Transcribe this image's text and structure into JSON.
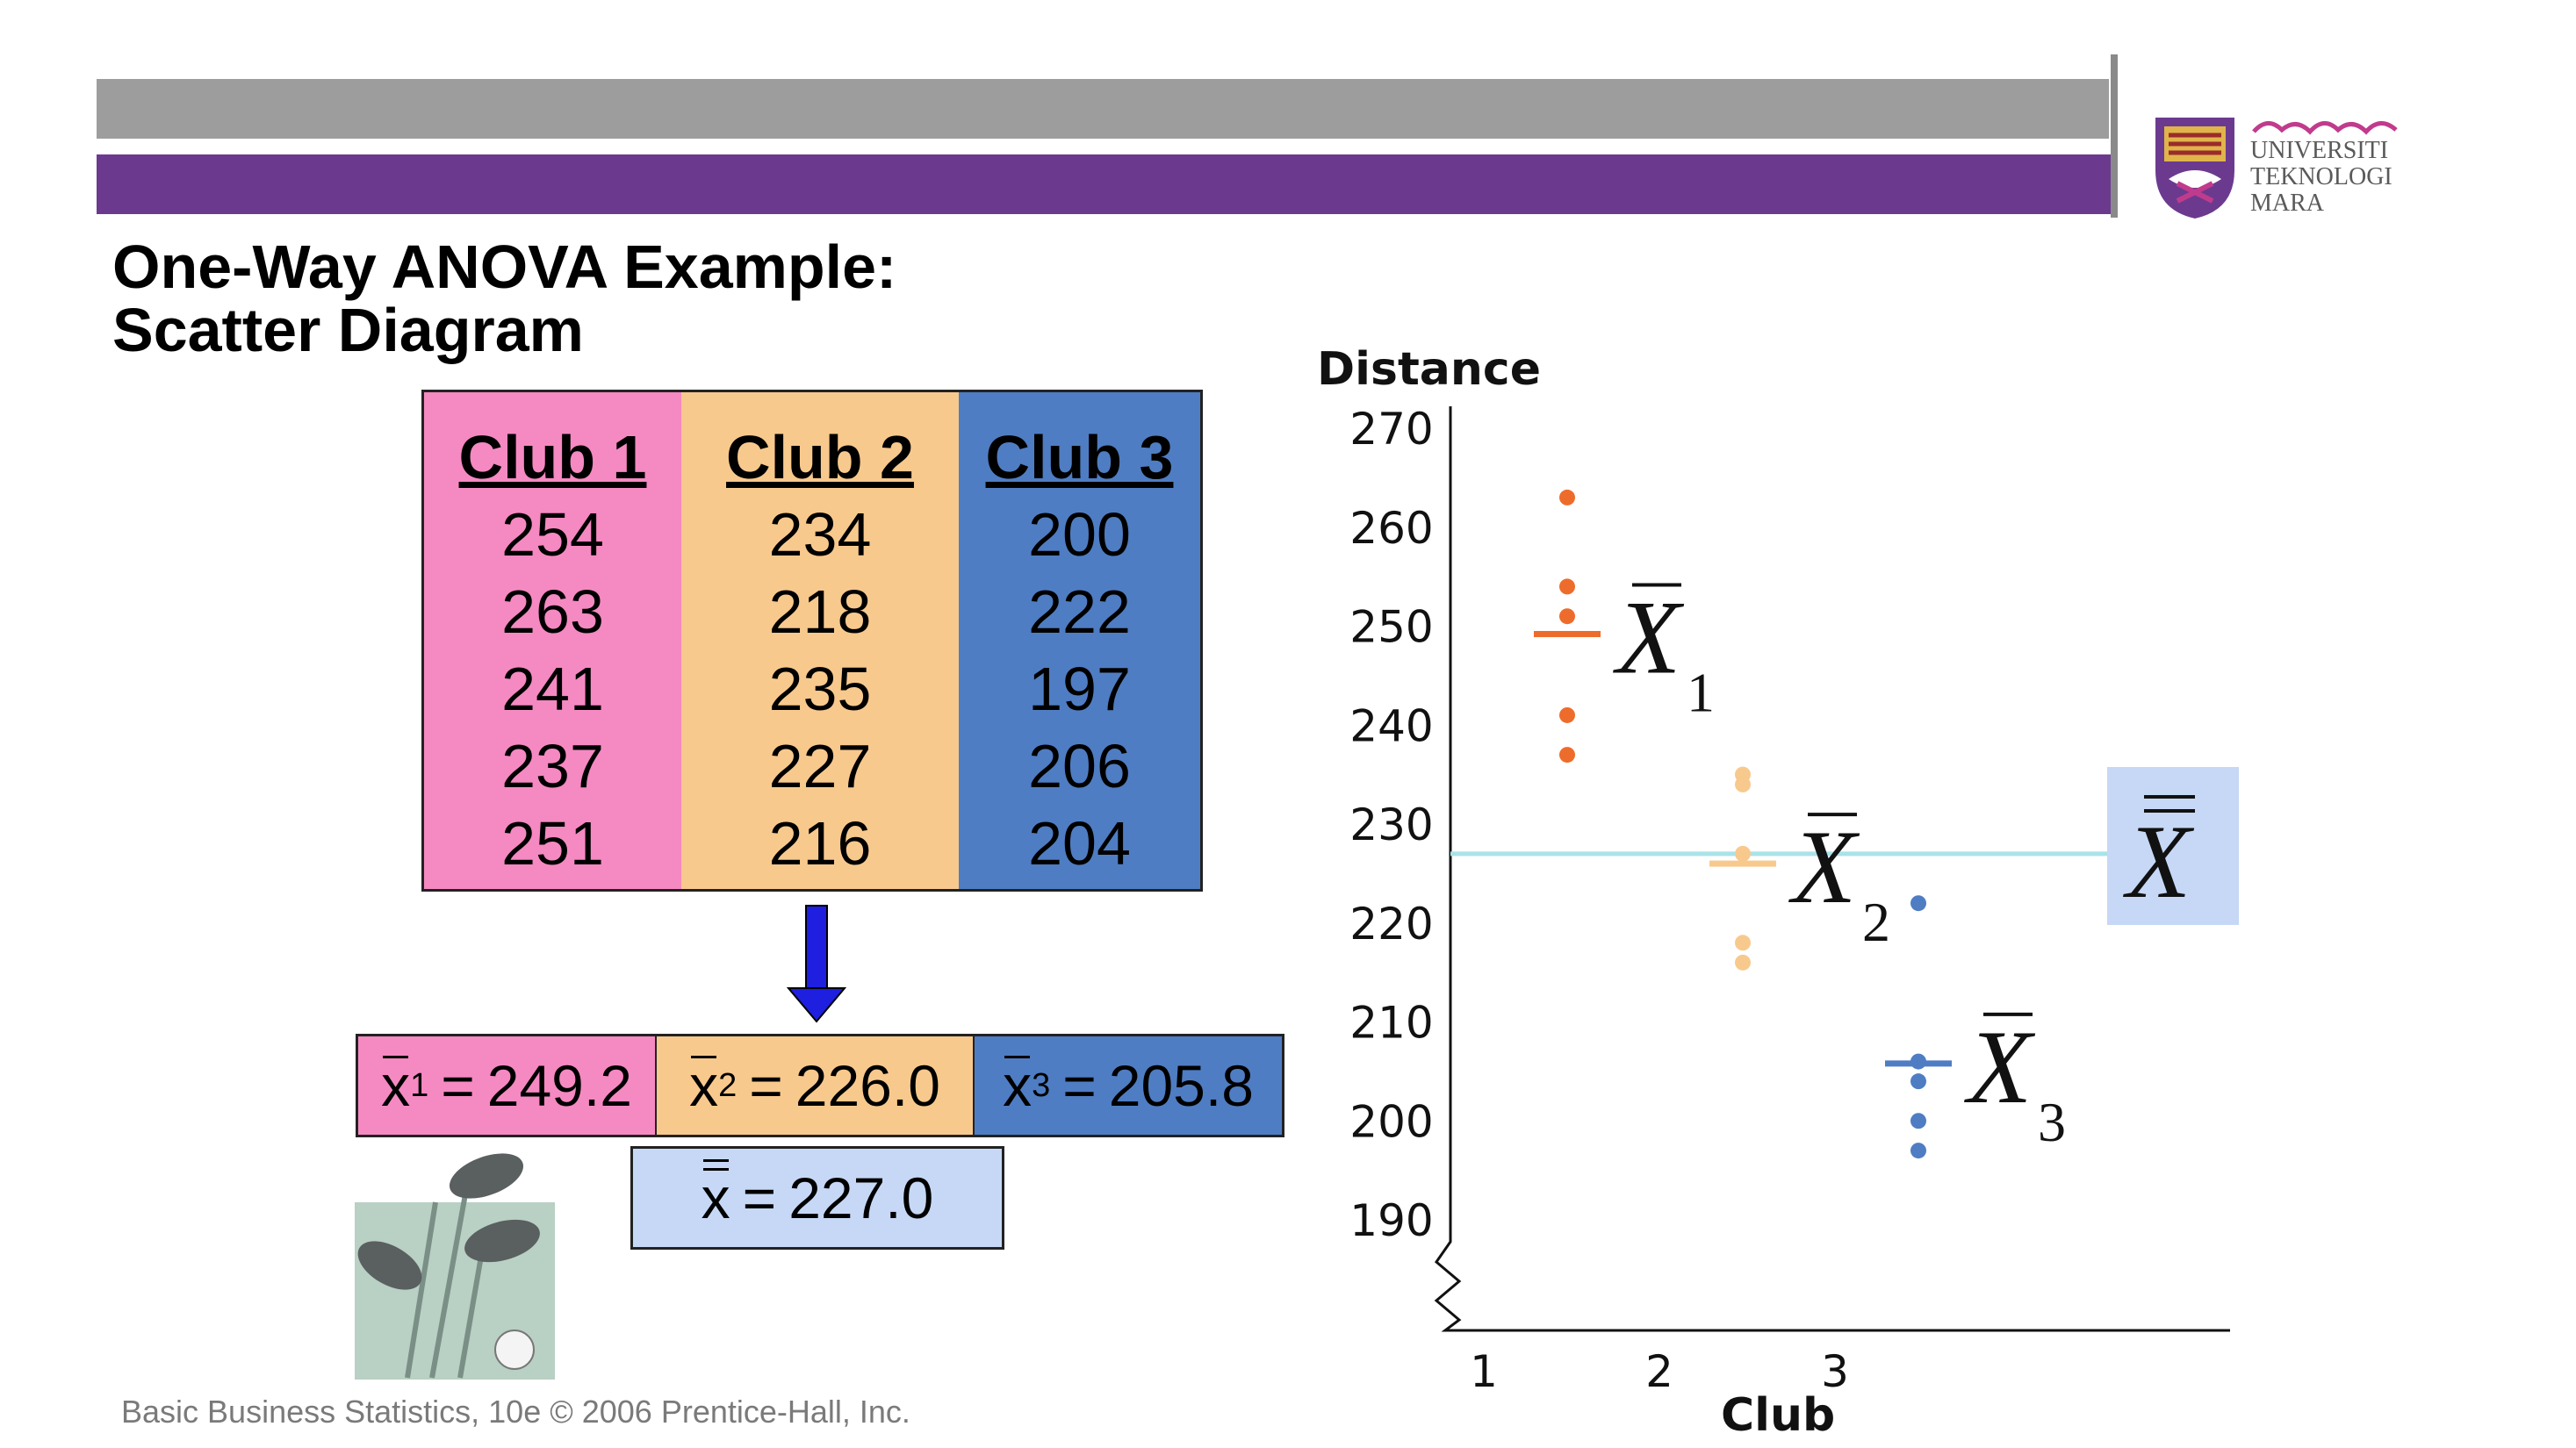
{
  "title_line1": "One-Way ANOVA Example:",
  "title_line2": "Scatter Diagram",
  "logo": {
    "line1": "UNIVERSITI",
    "line2": "TEKNOLOGI",
    "line3": "MARA"
  },
  "table": {
    "headers": [
      "Club 1",
      "Club 2",
      "Club 3"
    ],
    "columns": [
      [
        "254",
        "263",
        "241",
        "237",
        "251"
      ],
      [
        "234",
        "218",
        "235",
        "227",
        "216"
      ],
      [
        "200",
        "222",
        "197",
        "206",
        "204"
      ]
    ]
  },
  "means": {
    "m1": "249.2",
    "m2": "226.0",
    "m3": "205.8",
    "grand": "227.0",
    "sub1": "1",
    "sub2": "2",
    "sub3": "3",
    "symbol": "x",
    "eq": "="
  },
  "footer": "Basic Business Statistics, 10e © 2006 Prentice-Hall, Inc.",
  "colors": {
    "club1": "#f589c2",
    "club2": "#f8c98d",
    "club3": "#4f7dc3",
    "grand_line": "#a8e3e8",
    "purple_bar": "#6b3a8f",
    "gray_bar": "#9d9d9d"
  },
  "chart_data": {
    "type": "scatter",
    "ylabel": "Distance",
    "xlabel": "Club",
    "ylim": [
      190,
      270
    ],
    "yticks": [
      190,
      200,
      210,
      220,
      230,
      240,
      250,
      260,
      270
    ],
    "xticks": [
      1,
      2,
      3
    ],
    "series": [
      {
        "x": 1,
        "values": [
          254,
          263,
          241,
          237,
          251
        ],
        "color": "#ee6c2b",
        "mean": 249.2,
        "mean_color": "#ee6c2b",
        "mean_label_sub": "1"
      },
      {
        "x": 2,
        "values": [
          234,
          218,
          235,
          227,
          216
        ],
        "color": "#f8c98d",
        "mean": 226.0,
        "mean_color": "#f8c98d",
        "mean_label_sub": "2"
      },
      {
        "x": 3,
        "values": [
          200,
          222,
          197,
          206,
          204
        ],
        "color": "#4f7dc3",
        "mean": 205.8,
        "mean_color": "#4f7dc3",
        "mean_label_sub": "3"
      }
    ],
    "grand_mean": 227.0,
    "mean_symbol": "X"
  }
}
